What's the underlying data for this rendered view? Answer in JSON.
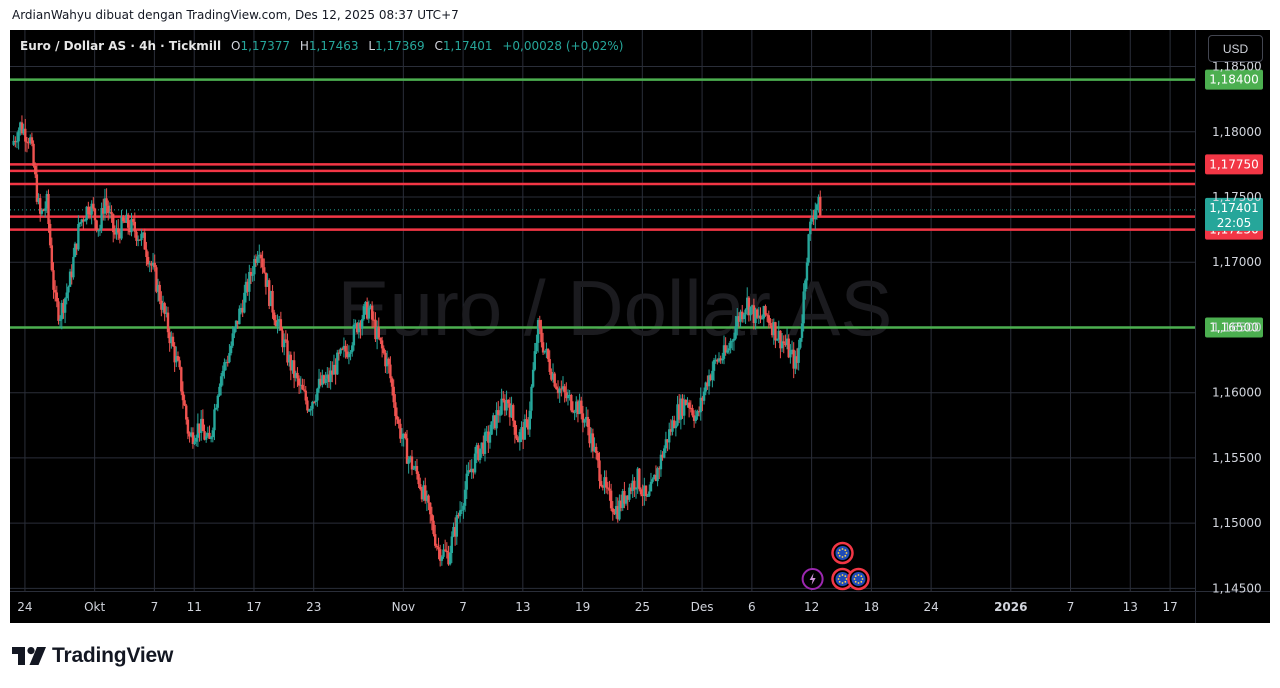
{
  "header": {
    "attribution": "ArdianWahyu dibuat dengan TradingView.com, Des 12, 2025 08:37 UTC+7"
  },
  "legend": {
    "symbol": "Euro / Dollar AS · 4h · Tickmill",
    "o_label": "O",
    "o_value": "1,17377",
    "h_label": "H",
    "h_value": "1,17463",
    "l_label": "L",
    "l_value": "1,17369",
    "c_label": "C",
    "c_value": "1,17401",
    "change": "+0,00028 (+0,02%)"
  },
  "currency_button": "USD",
  "watermark": "Euro / Dollar AS",
  "footer": {
    "brand": "TradingView"
  },
  "colors": {
    "up": "#26a69a",
    "down": "#ef5350",
    "bg": "#000000",
    "support": "#4caf50",
    "resistance": "#f23645",
    "grid": "#2a2e39"
  },
  "chart_data": {
    "type": "candlestick",
    "timeframe": "4h",
    "ylim": [
      1.1448,
      1.1878
    ],
    "y_ticks": [
      1.145,
      1.15,
      1.155,
      1.16,
      1.165,
      1.17,
      1.175,
      1.18,
      1.185
    ],
    "y_tick_labels": [
      "1,14500",
      "1,15000",
      "1,15500",
      "1,16000",
      "1,16500",
      "1,17000",
      "1,17500",
      "1,18000",
      "1,18500"
    ],
    "x_ticks": [
      {
        "label": "24",
        "day": -7
      },
      {
        "label": "Okt",
        "day": 0
      },
      {
        "label": "7",
        "day": 6
      },
      {
        "label": "11",
        "day": 10
      },
      {
        "label": "17",
        "day": 16
      },
      {
        "label": "23",
        "day": 22
      },
      {
        "label": "Nov",
        "day": 31
      },
      {
        "label": "7",
        "day": 37
      },
      {
        "label": "13",
        "day": 43
      },
      {
        "label": "19",
        "day": 49
      },
      {
        "label": "25",
        "day": 55
      },
      {
        "label": "Des",
        "day": 61
      },
      {
        "label": "6",
        "day": 66
      },
      {
        "label": "12",
        "day": 72
      },
      {
        "label": "18",
        "day": 78
      },
      {
        "label": "24",
        "day": 84
      },
      {
        "label": "2026",
        "day": 92
      },
      {
        "label": "7",
        "day": 98
      },
      {
        "label": "13",
        "day": 104
      },
      {
        "label": "17",
        "day": 108
      }
    ],
    "xlim": [
      -8.5,
      110.5
    ],
    "horizontal_levels": [
      {
        "price": 1.184,
        "label": "1,18400",
        "kind": "support"
      },
      {
        "price": 1.1775,
        "label": "1,17750",
        "kind": "resistance"
      },
      {
        "price": 1.177,
        "label": "",
        "kind": "resistance"
      },
      {
        "price": 1.176,
        "label": "",
        "kind": "resistance"
      },
      {
        "price": 1.1735,
        "label": "",
        "kind": "resistance"
      },
      {
        "price": 1.1725,
        "label": "1,17250",
        "kind": "resistance"
      },
      {
        "price": 1.165,
        "label": "1,16500",
        "kind": "support"
      }
    ],
    "current_price": {
      "price": 1.17401,
      "label": "1,17401",
      "countdown": "22:05"
    },
    "price_path": [
      {
        "day": -8.3,
        "price": 1.179
      },
      {
        "day": -7.5,
        "price": 1.1805
      },
      {
        "day": -6.5,
        "price": 1.1795
      },
      {
        "day": -5.5,
        "price": 1.1735
      },
      {
        "day": -4.8,
        "price": 1.1745
      },
      {
        "day": -4.0,
        "price": 1.167
      },
      {
        "day": -3.5,
        "price": 1.166
      },
      {
        "day": -2.5,
        "price": 1.1685
      },
      {
        "day": -1.5,
        "price": 1.173
      },
      {
        "day": -0.5,
        "price": 1.1745
      },
      {
        "day": 0.5,
        "price": 1.1725
      },
      {
        "day": 1.0,
        "price": 1.175
      },
      {
        "day": 2.0,
        "price": 1.172
      },
      {
        "day": 3.0,
        "price": 1.173
      },
      {
        "day": 4.0,
        "price": 1.1725
      },
      {
        "day": 5.0,
        "price": 1.1715
      },
      {
        "day": 6.0,
        "price": 1.169
      },
      {
        "day": 7.0,
        "price": 1.166
      },
      {
        "day": 8.0,
        "price": 1.163
      },
      {
        "day": 8.5,
        "price": 1.1615
      },
      {
        "day": 9.5,
        "price": 1.1565
      },
      {
        "day": 10.5,
        "price": 1.1575
      },
      {
        "day": 11.5,
        "price": 1.156
      },
      {
        "day": 12.5,
        "price": 1.161
      },
      {
        "day": 13.5,
        "price": 1.163
      },
      {
        "day": 14.5,
        "price": 1.166
      },
      {
        "day": 15.5,
        "price": 1.1685
      },
      {
        "day": 16.5,
        "price": 1.1715
      },
      {
        "day": 17.5,
        "price": 1.1675
      },
      {
        "day": 18.5,
        "price": 1.165
      },
      {
        "day": 19.5,
        "price": 1.1625
      },
      {
        "day": 20.5,
        "price": 1.1605
      },
      {
        "day": 21.5,
        "price": 1.159
      },
      {
        "day": 22.5,
        "price": 1.1605
      },
      {
        "day": 23.5,
        "price": 1.161
      },
      {
        "day": 24.5,
        "price": 1.1625
      },
      {
        "day": 25.5,
        "price": 1.1635
      },
      {
        "day": 26.5,
        "price": 1.1655
      },
      {
        "day": 27.5,
        "price": 1.1665
      },
      {
        "day": 28.5,
        "price": 1.164
      },
      {
        "day": 29.5,
        "price": 1.162
      },
      {
        "day": 30.5,
        "price": 1.1575
      },
      {
        "day": 31.5,
        "price": 1.155
      },
      {
        "day": 32.5,
        "price": 1.1535
      },
      {
        "day": 33.5,
        "price": 1.151
      },
      {
        "day": 34.5,
        "price": 1.148
      },
      {
        "day": 35.5,
        "price": 1.1475
      },
      {
        "day": 36.5,
        "price": 1.1505
      },
      {
        "day": 37.5,
        "price": 1.1535
      },
      {
        "day": 38.5,
        "price": 1.1555
      },
      {
        "day": 39.5,
        "price": 1.1565
      },
      {
        "day": 40.5,
        "price": 1.1585
      },
      {
        "day": 41.5,
        "price": 1.1595
      },
      {
        "day": 42.5,
        "price": 1.1565
      },
      {
        "day": 43.5,
        "price": 1.1575
      },
      {
        "day": 44.5,
        "price": 1.165
      },
      {
        "day": 45.5,
        "price": 1.1625
      },
      {
        "day": 46.5,
        "price": 1.1605
      },
      {
        "day": 47.5,
        "price": 1.1595
      },
      {
        "day": 48.5,
        "price": 1.159
      },
      {
        "day": 49.5,
        "price": 1.1575
      },
      {
        "day": 50.5,
        "price": 1.1545
      },
      {
        "day": 51.5,
        "price": 1.152
      },
      {
        "day": 52.5,
        "price": 1.151
      },
      {
        "day": 53.5,
        "price": 1.1525
      },
      {
        "day": 54.5,
        "price": 1.1535
      },
      {
        "day": 55.5,
        "price": 1.1515
      },
      {
        "day": 56.5,
        "price": 1.154
      },
      {
        "day": 57.5,
        "price": 1.1565
      },
      {
        "day": 58.5,
        "price": 1.1585
      },
      {
        "day": 59.5,
        "price": 1.1595
      },
      {
        "day": 60.5,
        "price": 1.158
      },
      {
        "day": 61.5,
        "price": 1.161
      },
      {
        "day": 62.5,
        "price": 1.1625
      },
      {
        "day": 63.5,
        "price": 1.163
      },
      {
        "day": 64.5,
        "price": 1.1655
      },
      {
        "day": 65.5,
        "price": 1.167
      },
      {
        "day": 66.5,
        "price": 1.1655
      },
      {
        "day": 67.5,
        "price": 1.166
      },
      {
        "day": 68.5,
        "price": 1.1645
      },
      {
        "day": 69.5,
        "price": 1.1635
      },
      {
        "day": 70.5,
        "price": 1.162
      },
      {
        "day": 71.0,
        "price": 1.1655
      },
      {
        "day": 71.5,
        "price": 1.1705
      },
      {
        "day": 72.0,
        "price": 1.1735
      },
      {
        "day": 72.5,
        "price": 1.1745
      },
      {
        "day": 73.0,
        "price": 1.174
      }
    ],
    "events": [
      {
        "day": 72,
        "icon": "lightning-icon"
      },
      {
        "day": 75,
        "icon": "eu-flag-icon"
      },
      {
        "day": 75,
        "icon": "eu-flag-icon"
      },
      {
        "day": 76,
        "icon": "eu-flag-icon"
      }
    ]
  }
}
